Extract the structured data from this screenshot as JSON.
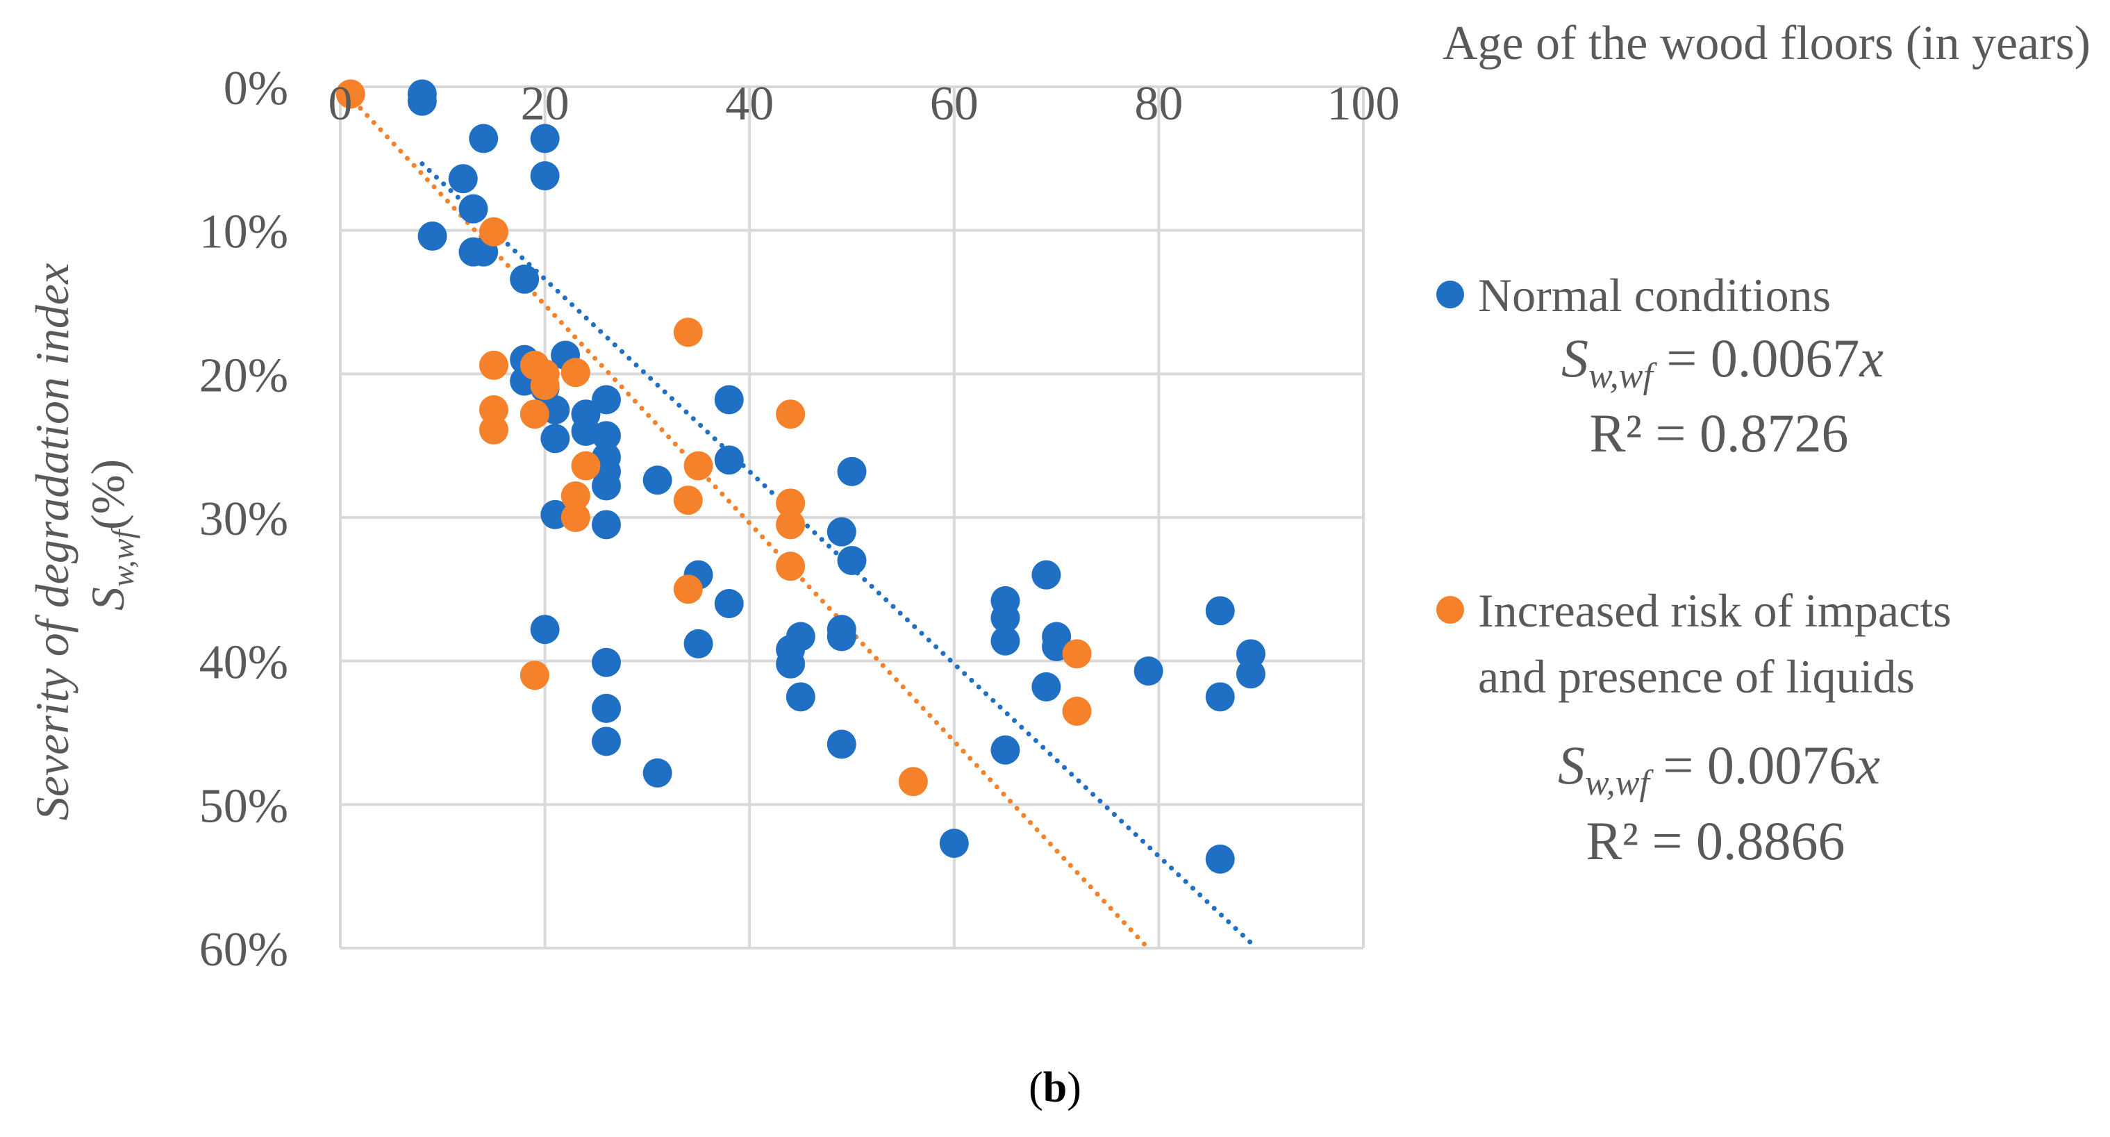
{
  "chart_data": {
    "type": "scatter",
    "x_axis": {
      "label": "Age of the wood floors (in years)",
      "position": "top",
      "range": [
        0,
        100
      ],
      "ticks": [
        0,
        20,
        40,
        60,
        80,
        100
      ],
      "tick_labels": [
        "0",
        "20",
        "40",
        "60",
        "80",
        "100"
      ]
    },
    "y_axis": {
      "label": "Severity of degradation index",
      "label_symbol": {
        "base": "S",
        "sub": "w,wf",
        "unit": "(%)"
      },
      "reversed": true,
      "range": [
        0,
        0.6
      ],
      "ticks": [
        0,
        0.1,
        0.2,
        0.3,
        0.4,
        0.5,
        0.6
      ],
      "tick_labels": [
        "0%",
        "10%",
        "20%",
        "30%",
        "40%",
        "50%",
        "60%"
      ]
    },
    "grid": true,
    "legend_position": "right",
    "caption": {
      "open": "(",
      "bold": "b",
      "close": ")"
    },
    "series": [
      {
        "name": "Normal conditions",
        "color": "#1f6fc5",
        "trendline": {
          "slope": 0.0067,
          "equation_lhs": {
            "base": "S",
            "sub": "w,wf"
          },
          "equation_rhs": " = 0.0067",
          "equation_var": "x",
          "r2": "R² = 0.8726"
        },
        "points": [
          [
            8,
            0.005
          ],
          [
            8,
            0.01
          ],
          [
            14,
            0.036
          ],
          [
            20,
            0.036
          ],
          [
            20,
            0.062
          ],
          [
            12,
            0.064
          ],
          [
            13,
            0.085
          ],
          [
            9,
            0.104
          ],
          [
            13,
            0.115
          ],
          [
            14,
            0.115
          ],
          [
            18,
            0.134
          ],
          [
            18,
            0.19
          ],
          [
            18,
            0.205
          ],
          [
            22,
            0.187
          ],
          [
            20,
            0.21
          ],
          [
            21,
            0.225
          ],
          [
            24,
            0.228
          ],
          [
            26,
            0.218
          ],
          [
            21,
            0.245
          ],
          [
            24,
            0.24
          ],
          [
            26,
            0.243
          ],
          [
            26,
            0.258
          ],
          [
            26,
            0.268
          ],
          [
            26,
            0.278
          ],
          [
            21,
            0.298
          ],
          [
            26,
            0.305
          ],
          [
            31,
            0.274
          ],
          [
            38,
            0.218
          ],
          [
            38,
            0.26
          ],
          [
            50,
            0.268
          ],
          [
            49,
            0.31
          ],
          [
            50,
            0.33
          ],
          [
            35,
            0.34
          ],
          [
            38,
            0.36
          ],
          [
            35,
            0.388
          ],
          [
            20,
            0.378
          ],
          [
            26,
            0.401
          ],
          [
            26,
            0.433
          ],
          [
            26,
            0.456
          ],
          [
            31,
            0.478
          ],
          [
            44,
            0.392
          ],
          [
            44,
            0.402
          ],
          [
            45,
            0.383
          ],
          [
            45,
            0.425
          ],
          [
            49,
            0.378
          ],
          [
            49,
            0.383
          ],
          [
            49,
            0.458
          ],
          [
            60,
            0.527
          ],
          [
            65,
            0.358
          ],
          [
            65,
            0.37
          ],
          [
            65,
            0.386
          ],
          [
            65,
            0.462
          ],
          [
            69,
            0.34
          ],
          [
            70,
            0.383
          ],
          [
            70,
            0.39
          ],
          [
            69,
            0.418
          ],
          [
            79,
            0.407
          ],
          [
            86,
            0.365
          ],
          [
            86,
            0.425
          ],
          [
            86,
            0.538
          ],
          [
            89,
            0.395
          ],
          [
            89,
            0.409
          ]
        ]
      },
      {
        "name": "Increased risk of impacts and presence of liquids",
        "name_lines": [
          "Increased risk of impacts",
          "and presence of liquids"
        ],
        "color": "#f5822a",
        "trendline": {
          "slope": 0.0076,
          "equation_lhs": {
            "base": "S",
            "sub": "w,wf"
          },
          "equation_rhs": " = 0.0076",
          "equation_var": "x",
          "r2": "R² = 0.8866"
        },
        "points": [
          [
            1,
            0.005
          ],
          [
            15,
            0.101
          ],
          [
            15,
            0.194
          ],
          [
            15,
            0.225
          ],
          [
            15,
            0.239
          ],
          [
            19,
            0.194
          ],
          [
            19,
            0.228
          ],
          [
            20,
            0.2
          ],
          [
            20,
            0.208
          ],
          [
            23,
            0.199
          ],
          [
            24,
            0.264
          ],
          [
            23,
            0.285
          ],
          [
            23,
            0.3
          ],
          [
            34,
            0.171
          ],
          [
            35,
            0.264
          ],
          [
            34,
            0.288
          ],
          [
            34,
            0.35
          ],
          [
            19,
            0.41
          ],
          [
            44,
            0.228
          ],
          [
            44,
            0.29
          ],
          [
            44,
            0.305
          ],
          [
            44,
            0.334
          ],
          [
            56,
            0.484
          ],
          [
            72,
            0.395
          ],
          [
            72,
            0.435
          ]
        ]
      }
    ]
  }
}
